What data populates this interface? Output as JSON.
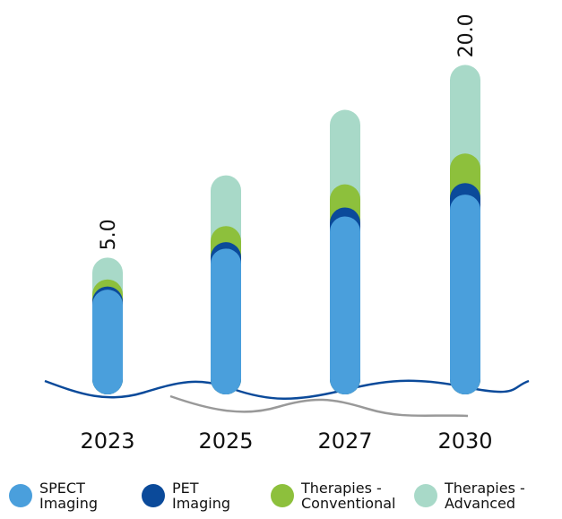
{
  "chart_data": {
    "type": "bar",
    "stacked": true,
    "categories": [
      "2023",
      "2025",
      "2027",
      "2030"
    ],
    "series": [
      {
        "name": "SPECT Imaging",
        "color": "#4a9fdc",
        "values": [
          2.5,
          5.7,
          8.2,
          9.9
        ]
      },
      {
        "name": "PET Imaging",
        "color": "#0b4a9a",
        "values": [
          0.25,
          0.5,
          0.7,
          0.9
        ]
      },
      {
        "name": "Therapies - Conventional",
        "color": "#8dc03c",
        "values": [
          0.55,
          1.25,
          1.8,
          2.3
        ]
      },
      {
        "name": "Therapies - Advanced",
        "color": "#a8d9c8",
        "values": [
          1.7,
          3.95,
          5.8,
          6.9
        ]
      }
    ],
    "totals": [
      5.0,
      null,
      null,
      20.0
    ],
    "total_labels": [
      "5.0",
      null,
      null,
      "20.0"
    ]
  }
}
